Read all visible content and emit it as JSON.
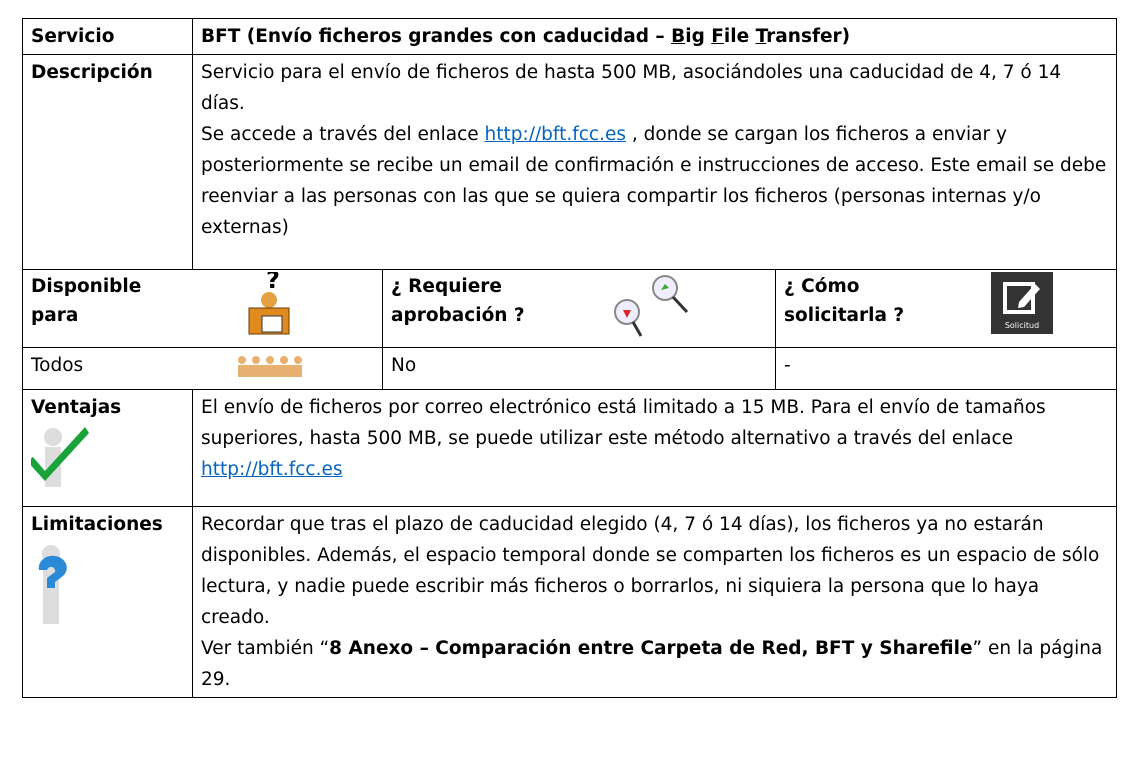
{
  "header": {
    "label": "Servicio",
    "title_parts": [
      "BFT (Envío ficheros grandes con caducidad – ",
      "B",
      "ig ",
      "F",
      "ile ",
      "T",
      "ransfer)"
    ]
  },
  "description": {
    "label": "Descripción",
    "paragraph1": "Servicio para el envío de ficheros de hasta 500 MB, asociándoles una caducidad de 4, 7 ó 14 días.",
    "paragraph2": [
      "Se accede a través del enlace ",
      "http://bft.fcc.es",
      " , donde se cargan los ficheros a enviar y posteriormente se recibe un email de confirmación e instrucciones de acceso. Este email se debe reenviar a las personas con las que se quiera compartir los ficheros (personas internas y/o externas)"
    ]
  },
  "availability": {
    "headers": [
      "Disponible para",
      "¿ Requiere aprobación ?",
      "¿ Cómo solicitarla ?"
    ],
    "icon_label": "Solicitud",
    "values": [
      "Todos",
      "No",
      "-"
    ]
  },
  "advantages": {
    "label": "Ventajas",
    "parts": [
      "El envío de ficheros por correo electrónico está limitado a 15 MB. Para el envío de tamaños superiores, hasta 500 MB, se puede utilizar este método alternativo a través del enlace ",
      "http://bft.fcc.es"
    ]
  },
  "limitations": {
    "label": "Limitaciones",
    "paragraph1": "Recordar que tras el plazo de caducidad elegido (4, 7 ó 14 días), los ficheros ya no estarán disponibles. Además, el espacio temporal donde se comparten los ficheros es un espacio de sólo lectura, y nadie puede escribir más ficheros o borrarlos, ni siquiera la persona que lo haya creado.",
    "paragraph2": [
      "Ver también “",
      "8 Anexo – Comparación entre Carpeta de Red, BFT y Sharefile",
      "” en la página 29."
    ]
  }
}
